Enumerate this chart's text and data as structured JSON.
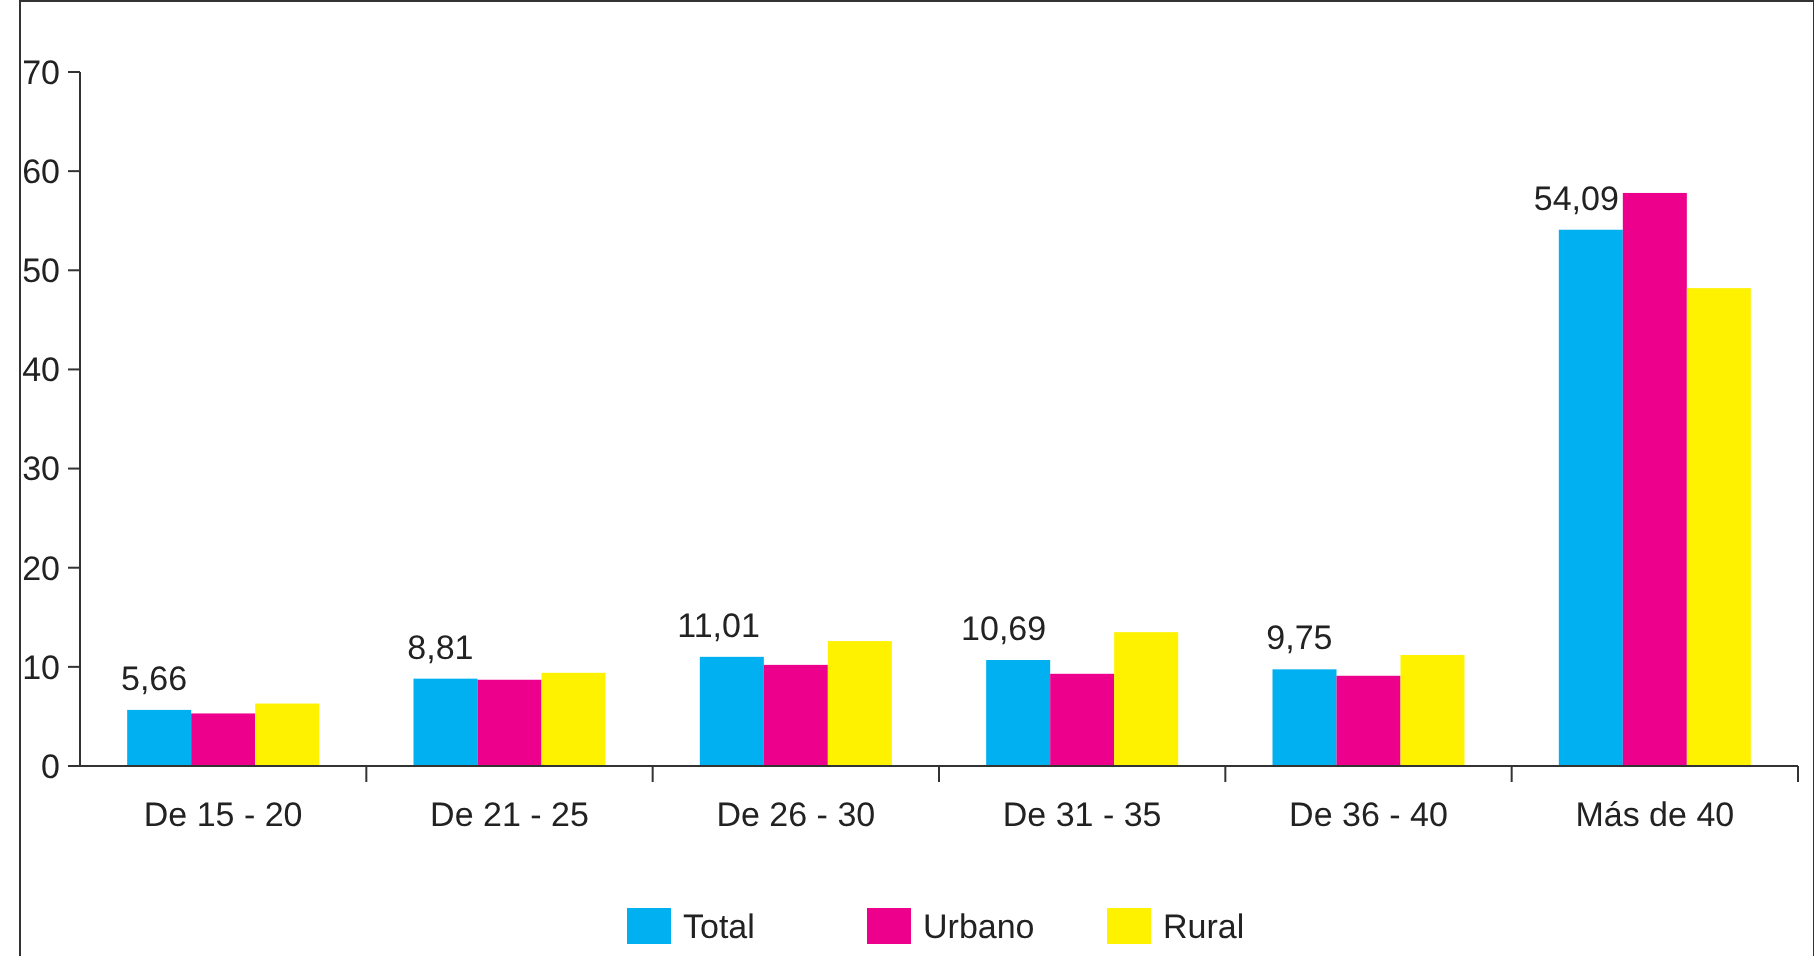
{
  "chart_data": {
    "type": "bar",
    "categories": [
      "De 15 - 20",
      "De 21 - 25",
      "De 26 - 30",
      "De 31 - 35",
      "De 36 - 40",
      "Más de 40"
    ],
    "series": [
      {
        "name": "Total",
        "color": "#00b0f0",
        "values": [
          5.66,
          8.81,
          11.01,
          10.69,
          9.75,
          54.09
        ],
        "value_labels": [
          "5,66",
          "8,81",
          "11,01",
          "10,69",
          "9,75",
          "54,09"
        ]
      },
      {
        "name": "Urbano",
        "color": "#ec008c",
        "values": [
          5.3,
          8.7,
          10.2,
          9.3,
          9.1,
          57.8
        ]
      },
      {
        "name": "Rural",
        "color": "#fff200",
        "values": [
          6.3,
          9.4,
          12.6,
          13.5,
          11.2,
          48.2
        ]
      }
    ],
    "ylim": [
      0,
      70
    ],
    "yticks": [
      0,
      10,
      20,
      30,
      40,
      50,
      60,
      70
    ],
    "grid": false,
    "legend": "bottom"
  }
}
